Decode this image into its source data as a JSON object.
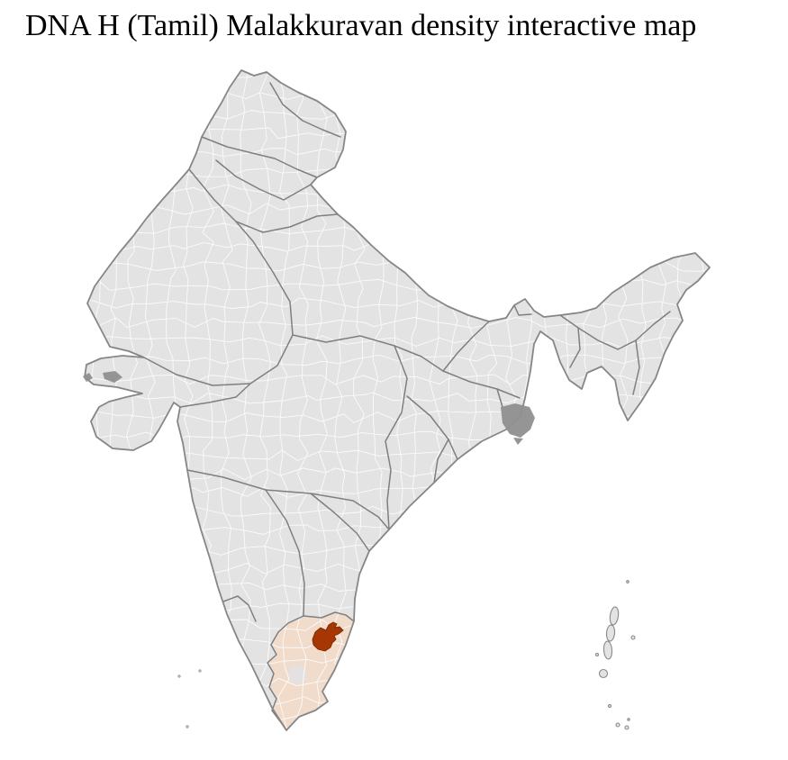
{
  "title": "DNA H (Tamil) Malakkuravan density interactive map",
  "map": {
    "country": "India",
    "type": "choropleth district map",
    "colors": {
      "background": "#ffffff",
      "base_fill": "#e3e3e3",
      "district_border": "#ffffff",
      "state_border": "#7f7f7f",
      "coast_border": "#868686",
      "tamil_nadu_fill": "#f1dccc",
      "highlight_fill": "#a63603",
      "highlight_border": "#7c2a02",
      "delta_fill": "#8f8f8f",
      "title_color": "#000000"
    },
    "regions": [
      {
        "name": "India — other states",
        "density": "no data",
        "fill": "#e3e3e3"
      },
      {
        "name": "Tamil Nadu",
        "density": "low",
        "fill": "#f1dccc"
      },
      {
        "name": "Highlighted district (northern Tamil Nadu)",
        "density": "high",
        "fill": "#a63603"
      }
    ],
    "islands": [
      "Lakshadweep",
      "Andaman and Nicobar Islands"
    ]
  }
}
